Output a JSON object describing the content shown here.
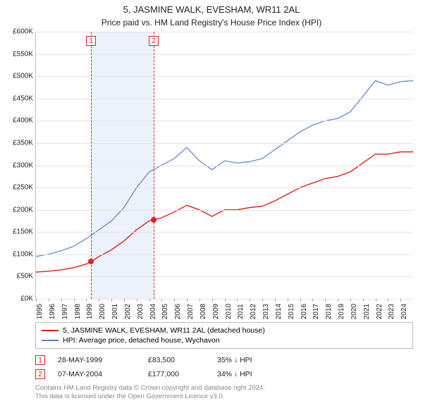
{
  "title": "5, JASMINE WALK, EVESHAM, WR11 2AL",
  "subtitle": "Price paid vs. HM Land Registry's House Price Index (HPI)",
  "chart": {
    "type": "line",
    "background_color": "#ffffff",
    "grid_color": "#e4e4e4",
    "axis_color": "#c0c0c0",
    "label_fontsize": 10,
    "years": [
      1995,
      1996,
      1997,
      1998,
      1999,
      2000,
      2001,
      2002,
      2003,
      2004,
      2005,
      2006,
      2007,
      2008,
      2009,
      2010,
      2011,
      2012,
      2013,
      2014,
      2015,
      2016,
      2017,
      2018,
      2019,
      2020,
      2021,
      2022,
      2023,
      2024
    ],
    "xlim": [
      1995,
      2025
    ],
    "ylim": [
      0,
      600
    ],
    "ytick_step": 50,
    "ytick_prefix": "£",
    "ytick_suffix": "K",
    "shade_band": {
      "start": 1999.4,
      "end": 2004.35,
      "color": "#ecf2fb"
    },
    "series": [
      {
        "name": "property",
        "label": "5, JASMINE WALK, EVESHAM, WR11 2AL (detached house)",
        "color": "#e02020",
        "line_width": 1.4,
        "data": [
          [
            1995,
            60
          ],
          [
            1996,
            62
          ],
          [
            1997,
            65
          ],
          [
            1998,
            70
          ],
          [
            1999,
            78
          ],
          [
            1999.4,
            83.5
          ],
          [
            2000,
            95
          ],
          [
            2001,
            110
          ],
          [
            2002,
            130
          ],
          [
            2003,
            155
          ],
          [
            2004,
            175
          ],
          [
            2004.35,
            177
          ],
          [
            2005,
            182
          ],
          [
            2006,
            195
          ],
          [
            2007,
            210
          ],
          [
            2008,
            200
          ],
          [
            2009,
            185
          ],
          [
            2010,
            200
          ],
          [
            2011,
            200
          ],
          [
            2012,
            205
          ],
          [
            2013,
            208
          ],
          [
            2014,
            220
          ],
          [
            2015,
            235
          ],
          [
            2016,
            250
          ],
          [
            2017,
            260
          ],
          [
            2018,
            270
          ],
          [
            2019,
            275
          ],
          [
            2020,
            285
          ],
          [
            2021,
            305
          ],
          [
            2022,
            325
          ],
          [
            2023,
            325
          ],
          [
            2024,
            330
          ],
          [
            2025,
            330
          ]
        ]
      },
      {
        "name": "hpi",
        "label": "HPI: Average price, detached house, Wychavon",
        "color": "#5b7fc7",
        "line_width": 1.2,
        "data": [
          [
            1995,
            95
          ],
          [
            1996,
            100
          ],
          [
            1997,
            108
          ],
          [
            1998,
            118
          ],
          [
            1999,
            135
          ],
          [
            2000,
            155
          ],
          [
            2001,
            175
          ],
          [
            2002,
            205
          ],
          [
            2003,
            250
          ],
          [
            2004,
            285
          ],
          [
            2005,
            300
          ],
          [
            2006,
            315
          ],
          [
            2007,
            340
          ],
          [
            2008,
            310
          ],
          [
            2009,
            290
          ],
          [
            2010,
            310
          ],
          [
            2011,
            305
          ],
          [
            2012,
            308
          ],
          [
            2013,
            315
          ],
          [
            2014,
            335
          ],
          [
            2015,
            355
          ],
          [
            2016,
            375
          ],
          [
            2017,
            390
          ],
          [
            2018,
            400
          ],
          [
            2019,
            405
          ],
          [
            2020,
            420
          ],
          [
            2021,
            455
          ],
          [
            2022,
            490
          ],
          [
            2023,
            480
          ],
          [
            2024,
            488
          ],
          [
            2025,
            490
          ]
        ]
      }
    ],
    "events": [
      {
        "n": "1",
        "year": 1999.4,
        "price_k": 83.5,
        "line_color": "#e02020",
        "marker_color": "#e02020"
      },
      {
        "n": "2",
        "year": 2004.35,
        "price_k": 177,
        "line_color": "#e02020",
        "marker_color": "#e02020"
      }
    ]
  },
  "transactions": [
    {
      "n": "1",
      "date": "28-MAY-1999",
      "price": "£83,500",
      "diff": "35% ↓ HPI"
    },
    {
      "n": "2",
      "date": "07-MAY-2004",
      "price": "£177,000",
      "diff": "34% ↓ HPI"
    }
  ],
  "footer_line1": "Contains HM Land Registry data © Crown copyright and database right 2024.",
  "footer_line2": "This data is licensed under the Open Government Licence v3.0."
}
